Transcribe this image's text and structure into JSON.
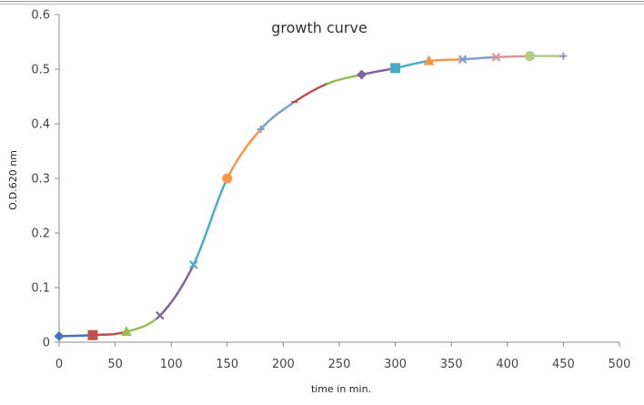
{
  "chart_data": {
    "type": "line",
    "title": "growth curve",
    "xlabel": "time in min.",
    "ylabel": "O.D.620 nm",
    "xlim": [
      0,
      500
    ],
    "ylim": [
      0,
      0.6
    ],
    "x_ticks": [
      "0",
      "50",
      "100",
      "150",
      "200",
      "250",
      "300",
      "350",
      "400",
      "450",
      "500"
    ],
    "y_ticks": [
      "0",
      "0.1",
      "0.2",
      "0.3",
      "0.4",
      "0.5",
      "0.6"
    ],
    "grid": false,
    "legend": "none",
    "points": [
      {
        "x": 0,
        "y": 0.011,
        "marker": "diamond",
        "color": "#4472C4"
      },
      {
        "x": 30,
        "y": 0.013,
        "marker": "square",
        "color": "#C0504D"
      },
      {
        "x": 60,
        "y": 0.019,
        "marker": "triangle",
        "color": "#9BBB59"
      },
      {
        "x": 90,
        "y": 0.049,
        "marker": "x",
        "color": "#8064A2"
      },
      {
        "x": 120,
        "y": 0.142,
        "marker": "x",
        "color": "#4BACC6"
      },
      {
        "x": 150,
        "y": 0.3,
        "marker": "circle",
        "color": "#F79646"
      },
      {
        "x": 180,
        "y": 0.39,
        "marker": "plus",
        "color": "#7F9FD0"
      },
      {
        "x": 210,
        "y": 0.44,
        "marker": "dash",
        "color": "#C0504D"
      },
      {
        "x": 240,
        "y": 0.474,
        "marker": "dash",
        "color": "#9BBB59"
      },
      {
        "x": 270,
        "y": 0.49,
        "marker": "diamond",
        "color": "#8064A2"
      },
      {
        "x": 300,
        "y": 0.502,
        "marker": "square",
        "color": "#4BACC6"
      },
      {
        "x": 330,
        "y": 0.515,
        "marker": "triangle",
        "color": "#F79646"
      },
      {
        "x": 360,
        "y": 0.518,
        "marker": "x",
        "color": "#7F9FD0"
      },
      {
        "x": 390,
        "y": 0.522,
        "marker": "x",
        "color": "#DA9694"
      },
      {
        "x": 420,
        "y": 0.524,
        "marker": "circle",
        "color": "#B2CC85"
      },
      {
        "x": 450,
        "y": 0.524,
        "marker": "plus",
        "color": "#A28DC0"
      }
    ]
  }
}
